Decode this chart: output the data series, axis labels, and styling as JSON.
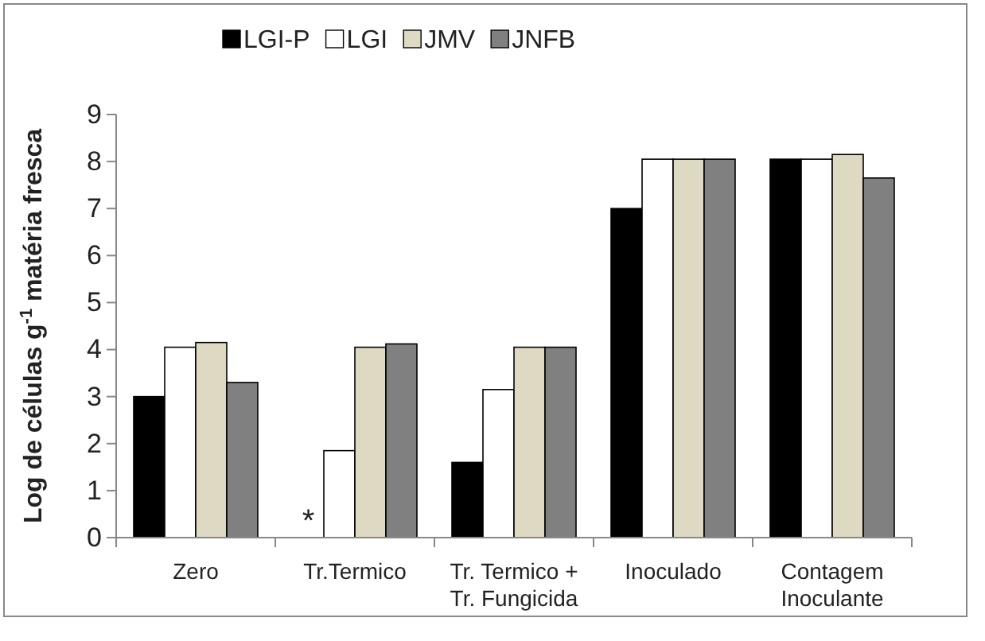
{
  "chart_data": {
    "type": "bar",
    "ylabel": "Log de células g$^{-1}$ matéria fresca",
    "categories": [
      "Zero",
      "Tr.Termico",
      "Tr. Termico +\nTr. Fungicida",
      "Inoculado",
      "Contagem\nInoculante"
    ],
    "series": [
      {
        "name": "LGI-P",
        "color": "#000000",
        "values": [
          3.0,
          null,
          1.6,
          7.0,
          8.05
        ]
      },
      {
        "name": "LGI",
        "color": "#ffffff",
        "values": [
          4.05,
          1.85,
          3.15,
          8.05,
          8.05
        ]
      },
      {
        "name": "JMV",
        "color": "#ddd9c3",
        "values": [
          4.15,
          4.05,
          4.05,
          8.05,
          8.15
        ]
      },
      {
        "name": "JNFB",
        "color": "#808080",
        "values": [
          3.3,
          4.12,
          4.05,
          8.05,
          7.65
        ]
      }
    ],
    "ylim": [
      0,
      9
    ],
    "yticks": [
      0,
      1,
      2,
      3,
      4,
      5,
      6,
      7,
      8,
      9
    ],
    "grid": false,
    "legend": "top",
    "annotations": [
      {
        "text": "*",
        "x": "Tr.Termico",
        "y": 0
      }
    ]
  }
}
